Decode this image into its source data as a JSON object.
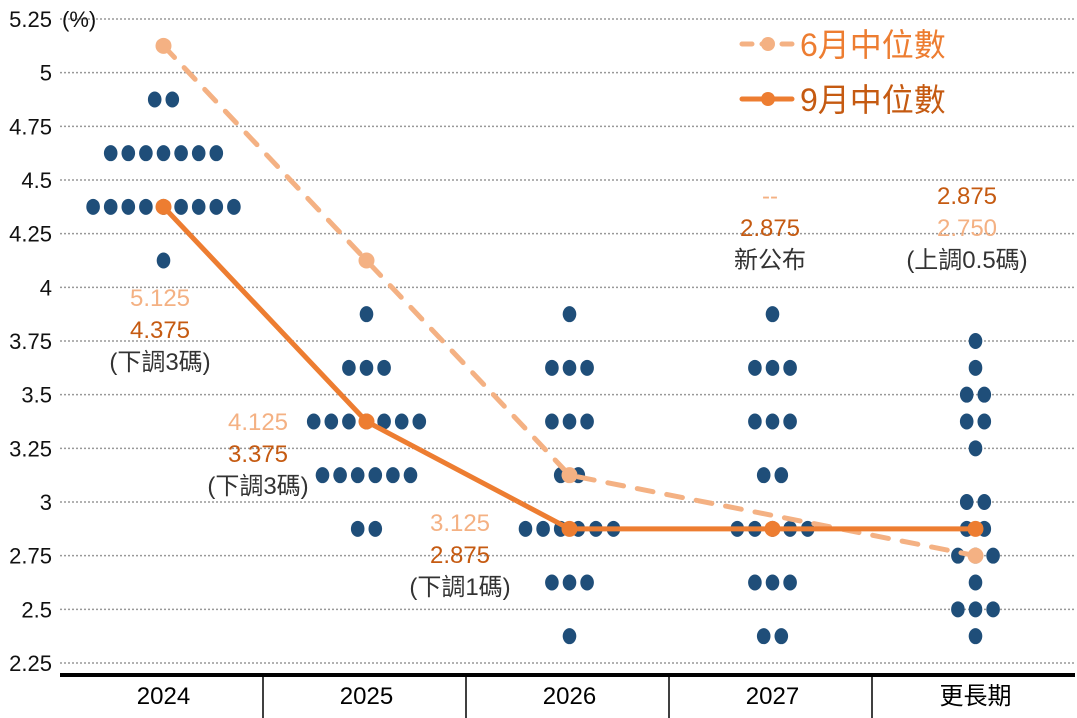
{
  "chart_data": {
    "type": "scatter",
    "unit_label": "(%)",
    "ylim": [
      2.25,
      5.25
    ],
    "yticks": [
      "5.25",
      "5",
      "4.75",
      "4.5",
      "4.25",
      "4",
      "3.75",
      "3.5",
      "3.25",
      "3",
      "2.75",
      "2.5",
      "2.25"
    ],
    "grid": true,
    "legend_position": "top-right",
    "categories": [
      "2024",
      "2025",
      "2026",
      "2027",
      "更長期"
    ],
    "dots": [
      [
        [
          4.875,
          2
        ],
        [
          4.625,
          7
        ],
        [
          4.375,
          9
        ],
        [
          4.125,
          1
        ]
      ],
      [
        [
          3.875,
          1
        ],
        [
          3.625,
          3
        ],
        [
          3.375,
          7
        ],
        [
          3.125,
          6
        ],
        [
          2.875,
          2
        ]
      ],
      [
        [
          3.875,
          1
        ],
        [
          3.625,
          3
        ],
        [
          3.375,
          3
        ],
        [
          3.125,
          2
        ],
        [
          2.875,
          6
        ],
        [
          2.625,
          3
        ],
        [
          2.375,
          1
        ]
      ],
      [
        [
          3.875,
          1
        ],
        [
          3.625,
          3
        ],
        [
          3.375,
          3
        ],
        [
          3.125,
          2
        ],
        [
          2.875,
          5
        ],
        [
          2.625,
          3
        ],
        [
          2.375,
          2
        ]
      ],
      [
        [
          3.75,
          1
        ],
        [
          3.625,
          1
        ],
        [
          3.5,
          2
        ],
        [
          3.375,
          2
        ],
        [
          3.25,
          1
        ],
        [
          3.0,
          2
        ],
        [
          2.875,
          2
        ],
        [
          2.75,
          3
        ],
        [
          2.625,
          1
        ],
        [
          2.5,
          3
        ],
        [
          2.375,
          1
        ]
      ]
    ],
    "series": [
      {
        "name": "6月中位數",
        "values": [
          5.125,
          4.125,
          3.125,
          null,
          2.75
        ],
        "color": "#f4b183",
        "style": "dashed"
      },
      {
        "name": "9月中位數",
        "values": [
          4.375,
          3.375,
          2.875,
          2.875,
          2.875
        ],
        "color": "#ed7d31",
        "style": "solid"
      }
    ],
    "dot_color": "#1f4e79",
    "annotations": [
      {
        "lines": [
          {
            "text": "5.125",
            "tone": "light"
          },
          {
            "text": "4.375",
            "tone": "dark"
          },
          {
            "text": "(下調3碼)",
            "tone": "gray"
          }
        ]
      },
      {
        "lines": [
          {
            "text": "4.125",
            "tone": "light"
          },
          {
            "text": "3.375",
            "tone": "dark"
          },
          {
            "text": "(下調3碼)",
            "tone": "gray"
          }
        ]
      },
      {
        "lines": [
          {
            "text": "3.125",
            "tone": "light"
          },
          {
            "text": "2.875",
            "tone": "dark"
          },
          {
            "text": "(下調1碼)",
            "tone": "gray"
          }
        ]
      },
      {
        "lines": [
          {
            "text": "--",
            "tone": "light"
          },
          {
            "text": "2.875",
            "tone": "dark"
          },
          {
            "text": "新公布",
            "tone": "gray"
          }
        ]
      },
      {
        "lines": [
          {
            "text": "2.875",
            "tone": "dark"
          },
          {
            "text": "2.750",
            "tone": "light"
          },
          {
            "text": "(上調0.5碼)",
            "tone": "gray"
          }
        ]
      }
    ],
    "tone_colors": {
      "light": "#f4b183",
      "dark": "#c55a11",
      "gray": "#333333"
    }
  }
}
